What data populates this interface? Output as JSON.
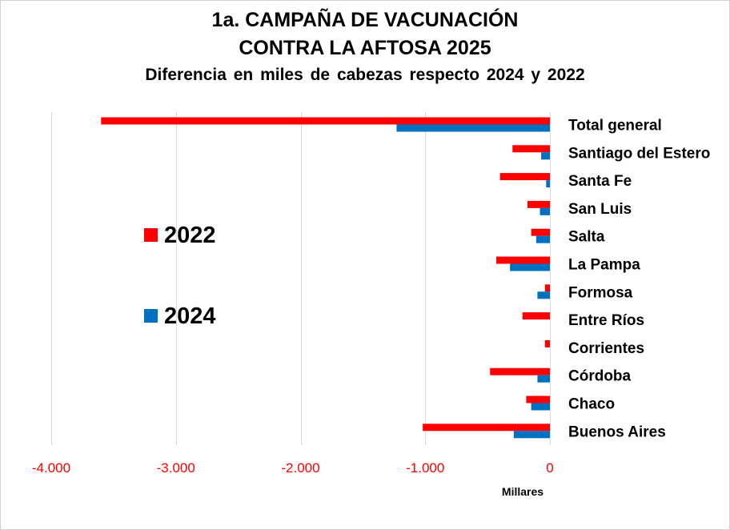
{
  "title_line1": "1a. CAMPAÑA DE VACUNACIÓN",
  "title_line2": "CONTRA LA AFTOSA 2025",
  "subtitle": "Diferencia en miles de cabezas respecto 2024 y 2022",
  "colors": {
    "series_2022": "#ff0000",
    "series_2024": "#0070c0",
    "tick_labels": "#ff0000",
    "gridlines": "#d9d9d9"
  },
  "chart_data": {
    "type": "bar",
    "orientation": "horizontal",
    "categories": [
      "Total general",
      "Santiago del Estero",
      "Santa Fe",
      "San Luis",
      "Salta",
      "La Pampa",
      "Formosa",
      "Entre Ríos",
      "Corrientes",
      "Córdoba",
      "Chaco",
      "Buenos Aires"
    ],
    "series": [
      {
        "name": "2022",
        "color": "#ff0000",
        "values": [
          -3600,
          -300,
          -400,
          -180,
          -150,
          -430,
          -40,
          -220,
          -40,
          -480,
          -190,
          -1020
        ]
      },
      {
        "name": "2024",
        "color": "#0070c0",
        "values": [
          -1230,
          -70,
          -30,
          -80,
          -110,
          -320,
          -100,
          0,
          0,
          -100,
          -150,
          -290
        ]
      }
    ],
    "xlim": [
      -4000,
      0
    ],
    "xticks": [
      -4000,
      -3000,
      -2000,
      -1000,
      0
    ],
    "xtick_labels": [
      "-4.000",
      "-3.000",
      "-2.000",
      "-1.000",
      "0"
    ],
    "xlabel": "Millares",
    "ylabel": "",
    "grid": "vertical",
    "legend": {
      "position": "left",
      "entries": [
        "2022",
        "2024"
      ]
    }
  }
}
